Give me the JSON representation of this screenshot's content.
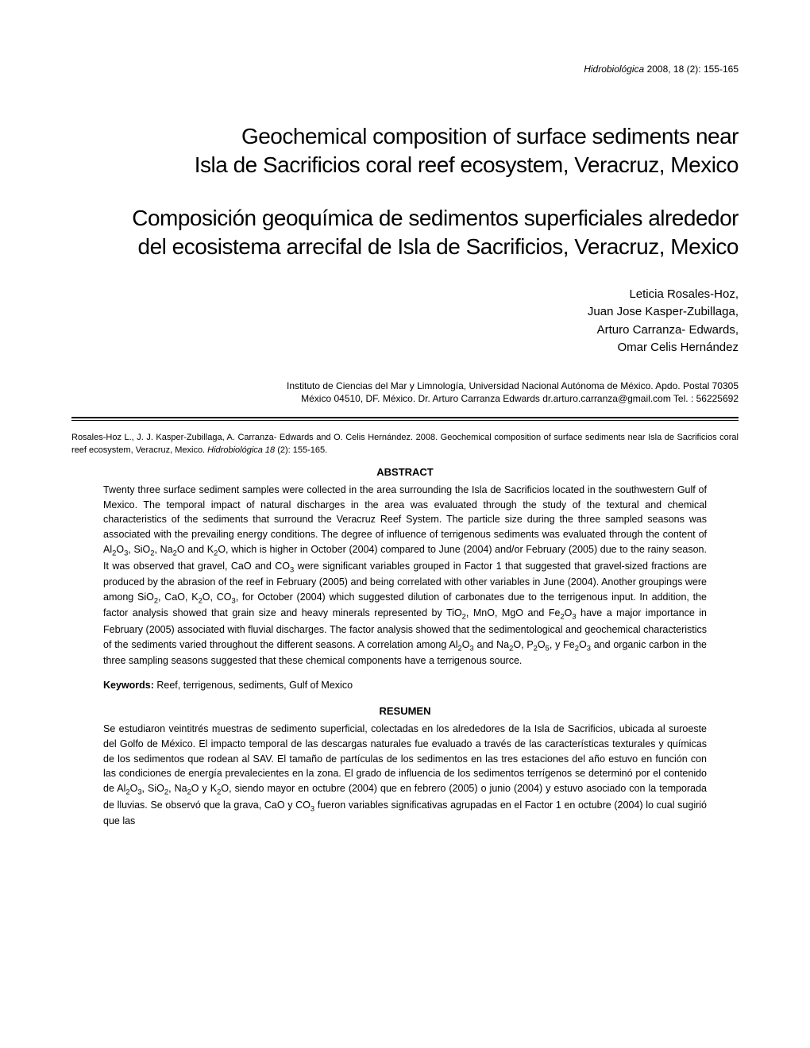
{
  "header": {
    "journal": "Hidrobiológica",
    "year_vol": " 2008, 18 (2): 155-165"
  },
  "title_en_line1": "Geochemical composition of surface sediments near",
  "title_en_line2": "Isla de Sacrificios coral reef ecosystem, Veracruz,  Mexico",
  "title_es_line1": "Composición geoquímica de sedimentos superficiales alrededor",
  "title_es_line2": "del ecosistema arrecifal de Isla de Sacrificios, Veracruz,  Mexico",
  "authors": {
    "a1": "Leticia Rosales-Hoz,",
    "a2": "Juan Jose Kasper-Zubillaga,",
    "a3": "Arturo Carranza- Edwards,",
    "a4": "Omar Celis Hernández"
  },
  "affiliation": {
    "line1": "Instituto de Ciencias del Mar y Limnología, Universidad Nacional Autónoma de México. Apdo. Postal 70305",
    "line2": "México 04510, DF. México. Dr. Arturo Carranza Edwards dr.arturo.carranza@gmail.com Tel. : 56225692"
  },
  "citation_full": {
    "authors_part": "Rosales-Hoz L., J. J. Kasper-Zubillaga, A. Carranza- Edwards and O. Celis Hernández. 2008. Geochemical composition of surface sediments near  Isla de Sacrificios coral reef ecosystem, Veracruz,  Mexico. ",
    "journal_part": "Hidrobiológica 18 ",
    "rest": "(2): 155-165."
  },
  "abstract_heading": "ABSTRACT",
  "abstract_body_html": "Twenty three surface sediment samples were collected in the area surrounding the Isla de Sacrificios located in the southwestern Gulf of Mexico. The temporal impact of natural discharges in the area was evaluated through the study of the textural and chemical characteristics of the sediments that surround the Veracruz Reef System. The particle size during the three sampled seasons was associated with the prevailing energy conditions. The degree of influence of terrigenous sediments was evaluated through the content of Al<sub>2</sub>O<sub>3</sub>, SiO<sub>2</sub>, Na<sub>2</sub>O and K<sub>2</sub>O, which is higher in October (2004) compared to June (2004) and/or February (2005) due to the rainy season. It was observed that gravel, CaO and CO<sub>3</sub> were significant variables grouped in Factor 1 that suggested that gravel-sized fractions are produced by the abrasion of the reef in February (2005) and being correlated with other variables in June (2004). Another groupings were among SiO<sub>2</sub>, CaO, K<sub>2</sub>O, CO<sub>3</sub>, for October (2004) which suggested dilution of carbonates due to the terrigenous input. In addition, the factor analysis showed that grain size and heavy minerals represented by TiO<sub>2</sub>, MnO, MgO and Fe<sub>2</sub>O<sub>3</sub> have a major importance in February (2005) associated with fluvial discharges. The factor analysis showed that the sedimentological and geochemical characteristics of the sediments varied throughout the different seasons. A correlation among Al<sub>2</sub>O<sub>3</sub> and Na<sub>2</sub>O, P<sub>2</sub>O<sub>5</sub>, y Fe<sub>2</sub>O<sub>3</sub> and organic carbon in the three sampling seasons suggested that these chemical components have a terrigenous source.",
  "keywords": {
    "label": "Keywords:",
    "text": " Reef, terrigenous, sediments, Gulf of Mexico"
  },
  "resumen_heading": "RESUMEN",
  "resumen_body_html": "Se estudiaron veintitrés muestras de sedimento superficial, colectadas en los alrededores de la Isla de Sacrificios, ubicada al suroeste del Golfo de México. El impacto temporal de las descargas naturales fue evaluado a través de las características texturales y químicas de los sedimentos que rodean al SAV. El tamaño de partículas de los sedimentos en las tres estaciones del año estuvo en función con las condiciones de energía prevalecientes en la zona. El grado de influencia de los sedimentos terrígenos se determinó por el contenido de Al<sub>2</sub>O<sub>3</sub>, SiO<sub>2</sub>, Na<sub>2</sub>O y K<sub>2</sub>O, siendo mayor en octubre (2004) que en febrero (2005) o junio (2004) y estuvo asociado con la temporada de lluvias. Se observó que la grava, CaO y CO<sub>3</sub> fueron variables significativas agrupadas en el Factor 1 en octubre (2004) lo cual sugirió que las"
}
